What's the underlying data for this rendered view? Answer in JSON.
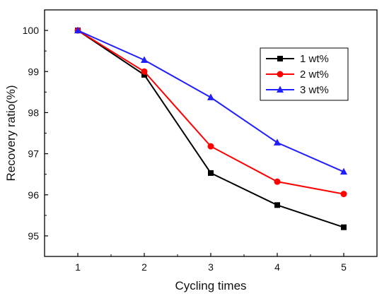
{
  "chart_data": {
    "type": "line",
    "xlabel": "Cycling times",
    "ylabel": "Recovery ratio(%)",
    "x": [
      1,
      2,
      3,
      4,
      5
    ],
    "xlim": [
      0.5,
      5.5
    ],
    "ylim": [
      94.5,
      100.5
    ],
    "xticks": [
      "1",
      "2",
      "3",
      "4",
      "5"
    ],
    "yticks": [
      "95",
      "96",
      "97",
      "98",
      "99",
      "100"
    ],
    "legend_position": "top-right",
    "grid": false,
    "series": [
      {
        "name": "1 wt%",
        "values": [
          100.0,
          98.92,
          96.53,
          95.75,
          95.21
        ],
        "color": "#000000",
        "marker": "square"
      },
      {
        "name": "2 wt%",
        "values": [
          100.0,
          99.0,
          97.18,
          96.32,
          96.02
        ],
        "color": "#ff0000",
        "marker": "circle"
      },
      {
        "name": "3 wt%",
        "values": [
          100.0,
          99.28,
          98.37,
          97.27,
          96.56
        ],
        "color": "#1f1fff",
        "marker": "triangle"
      }
    ]
  }
}
